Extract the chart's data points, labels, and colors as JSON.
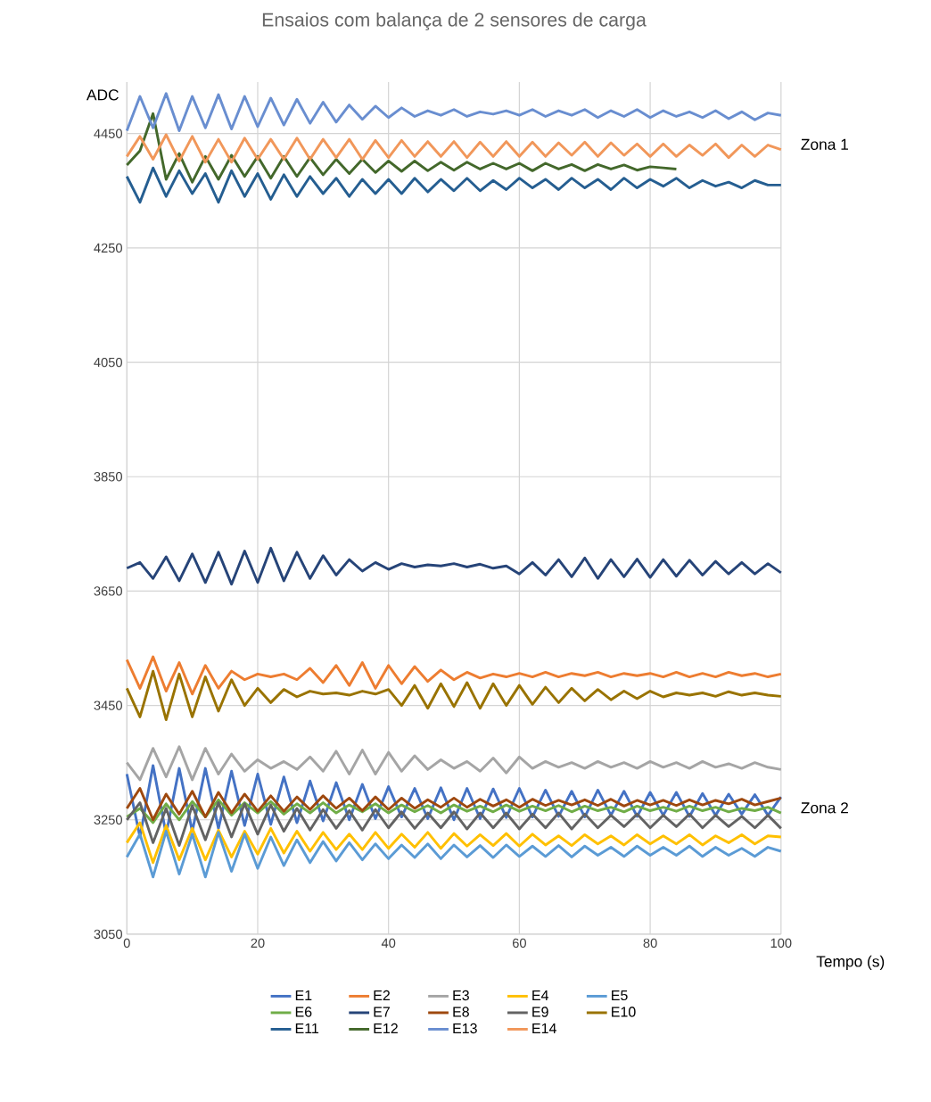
{
  "chart_data": {
    "type": "line",
    "title": "Ensaios com balança de 2 sensores de carga",
    "xlabel": "Tempo (s)",
    "ylabel": "ADC",
    "x": [
      0,
      2,
      4,
      6,
      8,
      10,
      12,
      14,
      16,
      18,
      20,
      22,
      24,
      26,
      28,
      30,
      32,
      34,
      36,
      38,
      40,
      42,
      44,
      46,
      48,
      50,
      52,
      54,
      56,
      58,
      60,
      62,
      64,
      66,
      68,
      70,
      72,
      74,
      76,
      78,
      80,
      82,
      84,
      86,
      88,
      90,
      92,
      94,
      96,
      98,
      100
    ],
    "xlim": [
      0,
      100
    ],
    "xticks": [
      0,
      20,
      40,
      60,
      80,
      100
    ],
    "ylim": [
      3050,
      4540
    ],
    "yticks": [
      3050,
      3250,
      3450,
      3650,
      3850,
      4050,
      4250,
      4450
    ],
    "grid": true,
    "legend": "bottom",
    "marker": "none",
    "line_style": "solid",
    "annotations": [
      {
        "text": "Zona 1",
        "x": 100,
        "y": 4431
      },
      {
        "text": "Zona 2",
        "x": 100,
        "y": 3271
      }
    ],
    "series": [
      {
        "name": "E1",
        "color": "#4472c4",
        "values": [
          3330,
          3220,
          3345,
          3225,
          3340,
          3230,
          3340,
          3235,
          3335,
          3240,
          3330,
          3242,
          3325,
          3245,
          3318,
          3248,
          3315,
          3250,
          3312,
          3252,
          3308,
          3255,
          3305,
          3252,
          3306,
          3250,
          3305,
          3252,
          3304,
          3254,
          3305,
          3255,
          3302,
          3256,
          3300,
          3255,
          3302,
          3258,
          3300,
          3256,
          3298,
          3258,
          3298,
          3256,
          3296,
          3258,
          3295,
          3260,
          3294,
          3258,
          3290
        ]
      },
      {
        "name": "E2",
        "color": "#ed7d31",
        "values": [
          3530,
          3480,
          3535,
          3475,
          3525,
          3470,
          3520,
          3480,
          3510,
          3495,
          3505,
          3500,
          3505,
          3495,
          3515,
          3490,
          3520,
          3485,
          3525,
          3480,
          3520,
          3488,
          3518,
          3492,
          3512,
          3495,
          3508,
          3498,
          3505,
          3500,
          3506,
          3500,
          3508,
          3500,
          3506,
          3502,
          3508,
          3500,
          3506,
          3502,
          3506,
          3500,
          3508,
          3500,
          3506,
          3500,
          3508,
          3502,
          3506,
          3500,
          3505
        ]
      },
      {
        "name": "E3",
        "color": "#a5a5a5",
        "values": [
          3350,
          3320,
          3375,
          3325,
          3378,
          3320,
          3375,
          3330,
          3365,
          3335,
          3355,
          3340,
          3352,
          3338,
          3360,
          3335,
          3370,
          3330,
          3372,
          3330,
          3368,
          3335,
          3362,
          3338,
          3355,
          3340,
          3352,
          3335,
          3358,
          3332,
          3360,
          3340,
          3352,
          3342,
          3350,
          3340,
          3352,
          3342,
          3350,
          3340,
          3352,
          3342,
          3350,
          3340,
          3352,
          3342,
          3348,
          3340,
          3350,
          3342,
          3338
        ]
      },
      {
        "name": "E4",
        "color": "#ffc000",
        "values": [
          3210,
          3245,
          3175,
          3240,
          3180,
          3235,
          3180,
          3232,
          3185,
          3230,
          3190,
          3235,
          3192,
          3230,
          3195,
          3228,
          3198,
          3225,
          3198,
          3228,
          3200,
          3225,
          3202,
          3228,
          3200,
          3226,
          3204,
          3224,
          3205,
          3226,
          3204,
          3225,
          3206,
          3222,
          3205,
          3224,
          3208,
          3222,
          3206,
          3224,
          3208,
          3222,
          3208,
          3224,
          3206,
          3222,
          3210,
          3224,
          3208,
          3222,
          3220
        ]
      },
      {
        "name": "E5",
        "color": "#5b9bd5",
        "values": [
          3185,
          3225,
          3150,
          3230,
          3155,
          3225,
          3150,
          3228,
          3160,
          3225,
          3165,
          3220,
          3170,
          3215,
          3175,
          3212,
          3178,
          3210,
          3180,
          3208,
          3182,
          3206,
          3184,
          3208,
          3182,
          3206,
          3185,
          3205,
          3184,
          3206,
          3186,
          3204,
          3186,
          3205,
          3185,
          3204,
          3188,
          3202,
          3186,
          3204,
          3188,
          3202,
          3188,
          3204,
          3186,
          3202,
          3188,
          3200,
          3186,
          3202,
          3195
        ]
      },
      {
        "name": "E6",
        "color": "#70ad47",
        "values": [
          3255,
          3270,
          3245,
          3278,
          3250,
          3282,
          3255,
          3285,
          3258,
          3280,
          3262,
          3282,
          3260,
          3278,
          3262,
          3280,
          3262,
          3276,
          3264,
          3278,
          3262,
          3276,
          3264,
          3275,
          3262,
          3276,
          3265,
          3274,
          3264,
          3276,
          3265,
          3274,
          3266,
          3275,
          3264,
          3274,
          3266,
          3272,
          3264,
          3274,
          3266,
          3272,
          3265,
          3274,
          3266,
          3272,
          3264,
          3270,
          3266,
          3272,
          3262
        ]
      },
      {
        "name": "E7",
        "color": "#264478",
        "values": [
          3690,
          3700,
          3672,
          3710,
          3668,
          3715,
          3665,
          3718,
          3662,
          3720,
          3665,
          3725,
          3668,
          3718,
          3672,
          3712,
          3678,
          3705,
          3685,
          3700,
          3688,
          3698,
          3692,
          3696,
          3694,
          3698,
          3692,
          3697,
          3690,
          3694,
          3680,
          3700,
          3678,
          3705,
          3675,
          3708,
          3672,
          3705,
          3675,
          3706,
          3674,
          3705,
          3676,
          3704,
          3678,
          3702,
          3680,
          3700,
          3680,
          3698,
          3682
        ]
      },
      {
        "name": "E8",
        "color": "#9e480e",
        "values": [
          3270,
          3305,
          3250,
          3295,
          3260,
          3300,
          3255,
          3298,
          3262,
          3295,
          3265,
          3292,
          3265,
          3290,
          3268,
          3292,
          3270,
          3288,
          3266,
          3290,
          3268,
          3288,
          3270,
          3285,
          3272,
          3288,
          3272,
          3286,
          3274,
          3285,
          3272,
          3286,
          3275,
          3284,
          3276,
          3285,
          3275,
          3286,
          3274,
          3284,
          3276,
          3284,
          3275,
          3285,
          3276,
          3284,
          3278,
          3286,
          3276,
          3282,
          3288
        ]
      },
      {
        "name": "E9",
        "color": "#636363",
        "values": [
          3250,
          3280,
          3210,
          3270,
          3205,
          3275,
          3215,
          3280,
          3220,
          3278,
          3225,
          3276,
          3230,
          3270,
          3232,
          3268,
          3235,
          3266,
          3232,
          3268,
          3236,
          3264,
          3235,
          3262,
          3236,
          3264,
          3234,
          3262,
          3236,
          3262,
          3234,
          3260,
          3236,
          3262,
          3234,
          3260,
          3236,
          3258,
          3238,
          3260,
          3236,
          3258,
          3238,
          3260,
          3236,
          3258,
          3238,
          3256,
          3236,
          3258,
          3235
        ]
      },
      {
        "name": "E10",
        "color": "#997300",
        "values": [
          3480,
          3430,
          3510,
          3425,
          3505,
          3430,
          3500,
          3440,
          3495,
          3450,
          3480,
          3455,
          3478,
          3465,
          3475,
          3470,
          3472,
          3468,
          3475,
          3470,
          3478,
          3450,
          3485,
          3445,
          3488,
          3448,
          3490,
          3445,
          3488,
          3450,
          3485,
          3452,
          3482,
          3455,
          3480,
          3458,
          3478,
          3460,
          3475,
          3462,
          3475,
          3465,
          3472,
          3468,
          3472,
          3466,
          3474,
          3468,
          3472,
          3468,
          3466
        ]
      },
      {
        "name": "E11",
        "color": "#255e91",
        "values": [
          4375,
          4330,
          4390,
          4340,
          4385,
          4345,
          4380,
          4330,
          4385,
          4340,
          4380,
          4335,
          4378,
          4340,
          4375,
          4345,
          4372,
          4340,
          4370,
          4345,
          4370,
          4345,
          4372,
          4348,
          4370,
          4350,
          4372,
          4350,
          4368,
          4352,
          4372,
          4355,
          4370,
          4352,
          4372,
          4355,
          4370,
          4352,
          4372,
          4355,
          4370,
          4358,
          4372,
          4355,
          4368,
          4358,
          4365,
          4355,
          4368,
          4360,
          4360
        ]
      },
      {
        "name": "E12",
        "color": "#43682b",
        "values": [
          4395,
          4420,
          4485,
          4370,
          4415,
          4365,
          4410,
          4370,
          4412,
          4375,
          4410,
          4372,
          4410,
          4375,
          4408,
          4378,
          4405,
          4380,
          4405,
          4382,
          4402,
          4384,
          4402,
          4385,
          4400,
          4386,
          4400,
          4388,
          4398,
          4388,
          4398,
          4385,
          4398,
          4388,
          4396,
          4385,
          4396,
          4388,
          4395,
          4386,
          4392,
          4390,
          4388,
          null,
          null,
          null,
          null,
          null,
          null,
          null,
          null
        ]
      },
      {
        "name": "E13",
        "color": "#698ed0",
        "values": [
          4455,
          4515,
          4460,
          4520,
          4455,
          4515,
          4460,
          4518,
          4458,
          4515,
          4462,
          4512,
          4465,
          4510,
          4468,
          4505,
          4470,
          4500,
          4475,
          4498,
          4478,
          4495,
          4480,
          4490,
          4482,
          4492,
          4480,
          4488,
          4484,
          4490,
          4482,
          4492,
          4480,
          4490,
          4482,
          4492,
          4478,
          4490,
          4480,
          4492,
          4478,
          4490,
          4480,
          4488,
          4478,
          4490,
          4476,
          4488,
          4474,
          4486,
          4482
        ]
      },
      {
        "name": "E14",
        "color": "#f1975a",
        "values": [
          4410,
          4445,
          4405,
          4448,
          4402,
          4445,
          4400,
          4440,
          4400,
          4442,
          4405,
          4440,
          4405,
          4442,
          4405,
          4440,
          4408,
          4440,
          4405,
          4438,
          4408,
          4438,
          4410,
          4436,
          4410,
          4436,
          4408,
          4435,
          4410,
          4436,
          4410,
          4435,
          4410,
          4434,
          4412,
          4435,
          4410,
          4434,
          4412,
          4432,
          4410,
          4432,
          4410,
          4430,
          4412,
          4432,
          4408,
          4430,
          4410,
          4430,
          4422
        ]
      }
    ]
  }
}
